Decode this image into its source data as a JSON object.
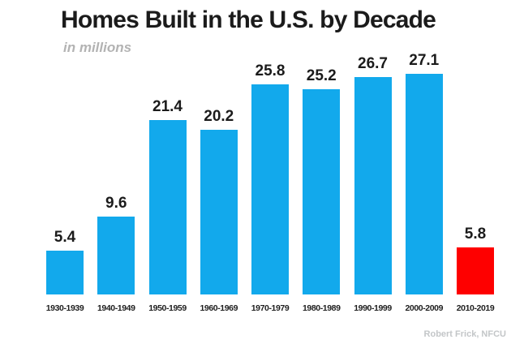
{
  "header": {
    "title": "Homes Built in the U.S. by Decade",
    "subtitle": "in millions"
  },
  "footer": {
    "attribution": "Robert Frick, NFCU"
  },
  "colors": {
    "bar_default": "#12A9EC",
    "bar_highlight": "#FE0000",
    "title_text": "#1B1B1B",
    "subtitle_text": "#B3B3B3",
    "attribution_text": "#C3C6C8"
  },
  "chart_data": {
    "type": "bar",
    "title": "Homes Built in the U.S. by Decade",
    "subtitle": "in millions",
    "unit": "millions",
    "categories": [
      "1930-1939",
      "1940-1949",
      "1950-1959",
      "1960-1969",
      "1970-1979",
      "1980-1989",
      "1990-1999",
      "2000-2009",
      "2010-2019"
    ],
    "values": [
      5.4,
      9.6,
      21.4,
      20.2,
      25.8,
      25.2,
      26.7,
      27.1,
      5.8
    ],
    "highlight_index": 8,
    "data_labels": true,
    "ylim": [
      0,
      28
    ],
    "grid": false,
    "legend": false,
    "attribution": "Robert Frick, NFCU"
  }
}
